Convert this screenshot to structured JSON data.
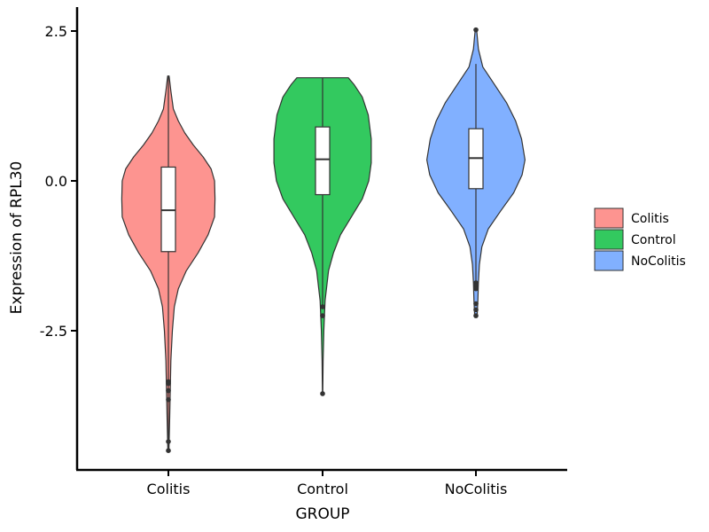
{
  "chart_data": {
    "type": "violin",
    "xlabel": "GROUP",
    "ylabel": "Expression of RPL30",
    "ylim": [
      -4.8,
      2.9
    ],
    "yticks": [
      2.5,
      0.0,
      -2.5
    ],
    "ytick_labels": [
      "2.5",
      "0.0",
      "-2.5"
    ],
    "categories": [
      "Colitis",
      "Control",
      "NoColitis"
    ],
    "legend_position": "right",
    "grid": false,
    "series": [
      {
        "name": "Colitis",
        "color": "#F8766D",
        "fill": "#FD9490",
        "box": {
          "q1": -1.18,
          "median": -0.49,
          "q3": 0.23,
          "whisker_low": -4.5,
          "whisker_high": 1.75
        },
        "outliers": [
          -3.35,
          -3.38,
          -3.5,
          -3.65,
          -4.35,
          -4.5
        ],
        "violin": [
          [
            1.75,
            0.015
          ],
          [
            1.5,
            0.05
          ],
          [
            1.2,
            0.1
          ],
          [
            1.0,
            0.2
          ],
          [
            0.8,
            0.33
          ],
          [
            0.6,
            0.5
          ],
          [
            0.4,
            0.7
          ],
          [
            0.2,
            0.86
          ],
          [
            0.0,
            0.93
          ],
          [
            -0.3,
            0.94
          ],
          [
            -0.6,
            0.93
          ],
          [
            -0.9,
            0.8
          ],
          [
            -1.2,
            0.6
          ],
          [
            -1.5,
            0.36
          ],
          [
            -1.8,
            0.2
          ],
          [
            -2.1,
            0.12
          ],
          [
            -2.5,
            0.08
          ],
          [
            -3.0,
            0.05
          ],
          [
            -3.5,
            0.038
          ],
          [
            -4.0,
            0.025
          ],
          [
            -4.5,
            0.01
          ]
        ]
      },
      {
        "name": "Control",
        "color": "#00BA38",
        "fill": "#33C95F",
        "box": {
          "q1": -0.23,
          "median": 0.36,
          "q3": 0.9,
          "whisker_low": -2.1,
          "whisker_high": 1.72
        },
        "outliers": [
          -2.1,
          -2.25,
          -3.55
        ],
        "violin": [
          [
            1.72,
            0.52
          ],
          [
            1.6,
            0.64
          ],
          [
            1.4,
            0.8
          ],
          [
            1.1,
            0.92
          ],
          [
            0.7,
            0.98
          ],
          [
            0.3,
            0.98
          ],
          [
            0.0,
            0.93
          ],
          [
            -0.3,
            0.8
          ],
          [
            -0.6,
            0.58
          ],
          [
            -0.9,
            0.36
          ],
          [
            -1.2,
            0.22
          ],
          [
            -1.5,
            0.12
          ],
          [
            -2.0,
            0.05
          ],
          [
            -2.5,
            0.025
          ],
          [
            -3.0,
            0.01
          ],
          [
            -3.55,
            0.004
          ]
        ]
      },
      {
        "name": "NoColitis",
        "color": "#619CFF",
        "fill": "#81B0FF",
        "box": {
          "q1": -0.13,
          "median": 0.38,
          "q3": 0.87,
          "whisker_low": -1.72,
          "whisker_high": 1.95
        },
        "outliers": [
          -1.7,
          -1.75,
          -1.8,
          -2.05,
          -2.15,
          -2.25,
          2.52
        ],
        "violin": [
          [
            2.52,
            0.015
          ],
          [
            2.2,
            0.05
          ],
          [
            1.9,
            0.14
          ],
          [
            1.6,
            0.38
          ],
          [
            1.3,
            0.62
          ],
          [
            1.0,
            0.8
          ],
          [
            0.7,
            0.92
          ],
          [
            0.35,
            0.99
          ],
          [
            0.1,
            0.93
          ],
          [
            -0.2,
            0.76
          ],
          [
            -0.5,
            0.5
          ],
          [
            -0.8,
            0.25
          ],
          [
            -1.1,
            0.12
          ],
          [
            -1.4,
            0.07
          ],
          [
            -1.7,
            0.05
          ],
          [
            -2.0,
            0.04
          ],
          [
            -2.25,
            0.025
          ]
        ]
      }
    ]
  }
}
